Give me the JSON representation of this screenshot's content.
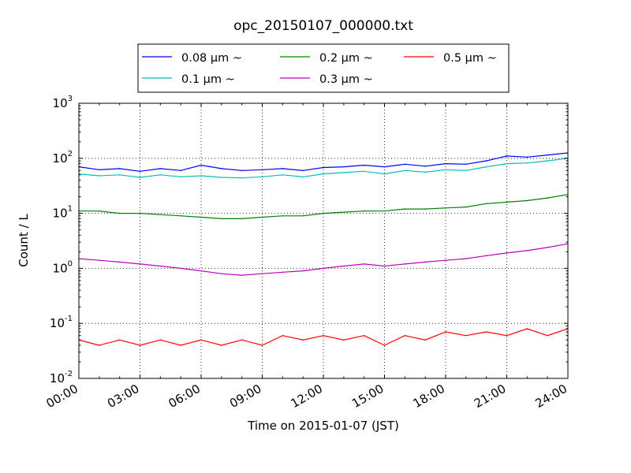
{
  "chart_data": {
    "type": "line",
    "title": "opc_20150107_000000.txt",
    "xlabel": "Time on 2015-01-07 (JST)",
    "ylabel": "Count / L",
    "xlim": [
      "00:00",
      "24:00"
    ],
    "ylim": [
      0.01,
      1000
    ],
    "y_scale": "log",
    "grid": true,
    "legend_position": "top",
    "x_ticks": [
      "00:00",
      "03:00",
      "06:00",
      "09:00",
      "12:00",
      "15:00",
      "18:00",
      "21:00",
      "24:00"
    ],
    "y_ticks": [
      {
        "base": "10",
        "exp": "-2",
        "value": 0.01
      },
      {
        "base": "10",
        "exp": "-1",
        "value": 0.1
      },
      {
        "base": "10",
        "exp": "0",
        "value": 1
      },
      {
        "base": "10",
        "exp": "1",
        "value": 10
      },
      {
        "base": "10",
        "exp": "2",
        "value": 100
      },
      {
        "base": "10",
        "exp": "3",
        "value": 1000
      }
    ],
    "x": [
      "00:00",
      "01:00",
      "02:00",
      "03:00",
      "04:00",
      "05:00",
      "06:00",
      "07:00",
      "08:00",
      "09:00",
      "10:00",
      "11:00",
      "12:00",
      "13:00",
      "14:00",
      "15:00",
      "16:00",
      "17:00",
      "18:00",
      "19:00",
      "20:00",
      "21:00",
      "22:00",
      "23:00",
      "24:00"
    ],
    "series": [
      {
        "name": "0.08 μm ~",
        "color": "#0000ff",
        "values": [
          70,
          62,
          65,
          58,
          65,
          60,
          75,
          65,
          60,
          62,
          65,
          60,
          68,
          70,
          75,
          70,
          78,
          72,
          80,
          78,
          90,
          110,
          105,
          115,
          125
        ]
      },
      {
        "name": "0.1 μm ~",
        "color": "#00bfbf",
        "values": [
          52,
          48,
          50,
          45,
          50,
          46,
          48,
          45,
          44,
          46,
          50,
          46,
          52,
          55,
          58,
          52,
          60,
          56,
          62,
          60,
          70,
          80,
          82,
          90,
          100
        ]
      },
      {
        "name": "0.2 μm ~",
        "color": "#008000",
        "values": [
          11,
          11,
          10,
          10,
          9.5,
          9,
          8.5,
          8,
          8,
          8.5,
          9,
          9,
          10,
          10.5,
          11,
          11,
          12,
          12,
          12.5,
          13,
          15,
          16,
          17,
          19,
          22
        ]
      },
      {
        "name": "0.3 μm ~",
        "color": "#bf00bf",
        "values": [
          1.5,
          1.4,
          1.3,
          1.2,
          1.1,
          1.0,
          0.9,
          0.8,
          0.75,
          0.8,
          0.85,
          0.9,
          1.0,
          1.1,
          1.2,
          1.1,
          1.2,
          1.3,
          1.4,
          1.5,
          1.7,
          1.9,
          2.1,
          2.4,
          2.8
        ]
      },
      {
        "name": "0.5 μm ~",
        "color": "#ff0000",
        "values": [
          0.05,
          0.04,
          0.05,
          0.04,
          0.05,
          0.04,
          0.05,
          0.04,
          0.05,
          0.04,
          0.06,
          0.05,
          0.06,
          0.05,
          0.06,
          0.04,
          0.06,
          0.05,
          0.07,
          0.06,
          0.07,
          0.06,
          0.08,
          0.06,
          0.08
        ]
      }
    ]
  }
}
